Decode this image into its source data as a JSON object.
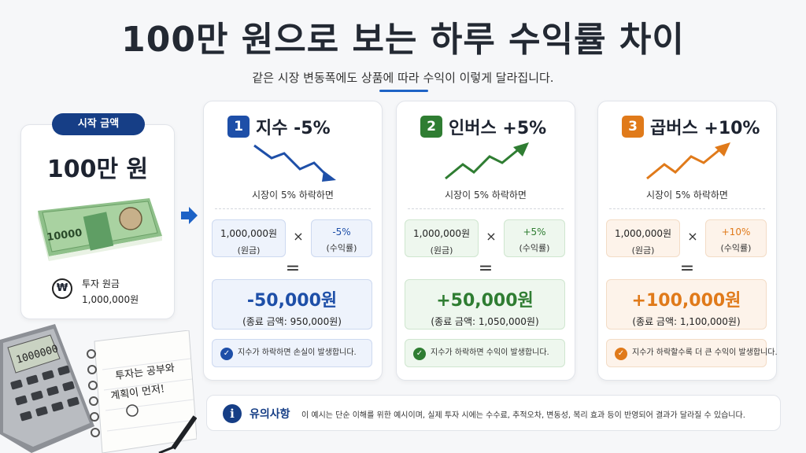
{
  "title": "100만 원으로 보는 하루 수익률 차이",
  "subtitle": "같은 시장 변동폭에도 상품에 따라 수익이 이렇게 달라집니다.",
  "start": {
    "pill": "시작 금액",
    "amount": "100만 원",
    "invest_icon": "₩",
    "invest_label": "투자 원금",
    "invest_value": "1,000,000원",
    "bill_text": "10000"
  },
  "cards": [
    {
      "num": "1",
      "title": "지수 -5%",
      "condition": "시장이 5% 하락하면",
      "principal": "1,000,000원",
      "principal_label": "(원금)",
      "times": "×",
      "rate": "-5%",
      "rate_label": "(수익률)",
      "equals": "=",
      "result": "-50,000원",
      "final": "(종료 금액: 950,000원)",
      "note": "지수가 하락하면 손실이 발생합니다.",
      "accent": "#1e4fa8",
      "light": "#eef3fc",
      "border": "#cdd9f0",
      "trend": "down"
    },
    {
      "num": "2",
      "title": "인버스 +5%",
      "condition": "시장이 5% 하락하면",
      "principal": "1,000,000원",
      "principal_label": "(원금)",
      "times": "×",
      "rate": "+5%",
      "rate_label": "(수익률)",
      "equals": "=",
      "result": "+50,000원",
      "final": "(종료 금액: 1,050,000원)",
      "note": "지수가 하락하면 수익이 발생합니다.",
      "accent": "#2f7d32",
      "light": "#eef7ee",
      "border": "#cfe6cf",
      "trend": "up"
    },
    {
      "num": "3",
      "title": "곱버스 +10%",
      "condition": "시장이 5% 하락하면",
      "principal": "1,000,000원",
      "principal_label": "(원금)",
      "times": "×",
      "rate": "+10%",
      "rate_label": "(수익률)",
      "equals": "=",
      "result": "+100,000원",
      "final": "(종료 금액: 1,100,000원)",
      "note": "지수가 하락할수록 더 큰 수익이 발생합니다.",
      "accent": "#e07a1a",
      "light": "#fdf3ea",
      "border": "#f3dcc6",
      "trend": "up"
    }
  ],
  "caution": {
    "icon": "i",
    "title": "유의사항",
    "text": "이 예시는 단순 이해를 위한 예시이며, 실제 투자 시에는 수수료, 추적오차, 변동성, 복리 효과 등이 반영되어 결과가 달라질 수 있습니다."
  },
  "decor": {
    "calculator_display": "1000000",
    "note_line1": "투자는 공부와",
    "note_line2": "계획이 먼저!"
  }
}
